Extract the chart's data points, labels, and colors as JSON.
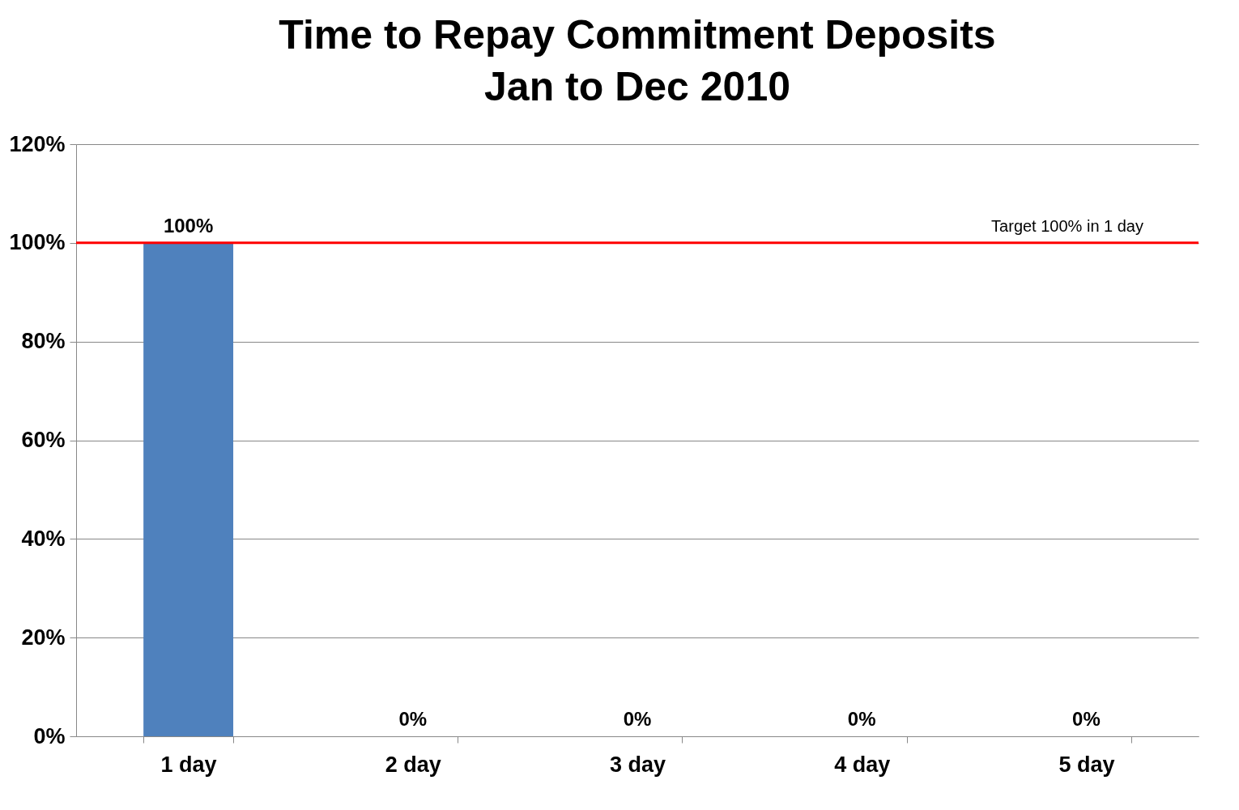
{
  "chart_data": {
    "type": "bar",
    "title": "Time to Repay Commitment Deposits",
    "subtitle": "Jan to Dec 2010",
    "categories": [
      "1 day",
      "2 day",
      "3 day",
      "4 day",
      "5 day"
    ],
    "values": [
      100,
      0,
      0,
      0,
      0
    ],
    "value_labels": [
      "100%",
      "0%",
      "0%",
      "0%",
      "0%"
    ],
    "color": "#4f81bd",
    "ylim": [
      0,
      120
    ],
    "yticks": [
      {
        "value": 0,
        "label": "0%"
      },
      {
        "value": 20,
        "label": "20%"
      },
      {
        "value": 40,
        "label": "40%"
      },
      {
        "value": 60,
        "label": "60%"
      },
      {
        "value": 80,
        "label": "80%"
      },
      {
        "value": 100,
        "label": "100%"
      },
      {
        "value": 120,
        "label": "120%"
      }
    ],
    "ref_lines": [
      {
        "axis": "y",
        "value": 100,
        "label": "Target 100% in 1 day",
        "color": "#ff0000"
      }
    ],
    "grid": "y"
  }
}
